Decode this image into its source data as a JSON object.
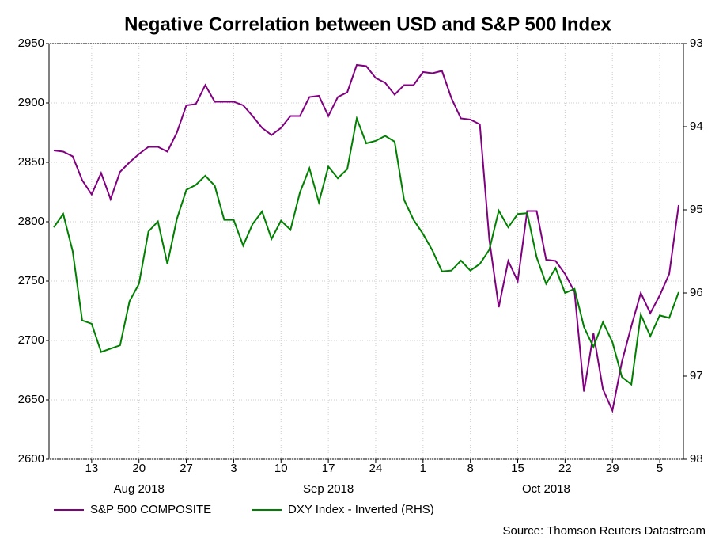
{
  "chart_data": {
    "type": "line",
    "title": "Negative Correlation between USD and S&P 500 Index",
    "source": "Source: Thomson Reuters Datastream",
    "x": [
      "2018-08-07",
      "2018-08-08",
      "2018-08-09",
      "2018-08-10",
      "2018-08-13",
      "2018-08-14",
      "2018-08-15",
      "2018-08-16",
      "2018-08-17",
      "2018-08-20",
      "2018-08-21",
      "2018-08-22",
      "2018-08-23",
      "2018-08-24",
      "2018-08-27",
      "2018-08-28",
      "2018-08-29",
      "2018-08-30",
      "2018-08-31",
      "2018-09-03",
      "2018-09-04",
      "2018-09-05",
      "2018-09-06",
      "2018-09-07",
      "2018-09-10",
      "2018-09-11",
      "2018-09-12",
      "2018-09-13",
      "2018-09-14",
      "2018-09-17",
      "2018-09-18",
      "2018-09-19",
      "2018-09-20",
      "2018-09-21",
      "2018-09-24",
      "2018-09-25",
      "2018-09-26",
      "2018-09-27",
      "2018-09-28",
      "2018-10-01",
      "2018-10-02",
      "2018-10-03",
      "2018-10-04",
      "2018-10-05",
      "2018-10-08",
      "2018-10-09",
      "2018-10-10",
      "2018-10-11",
      "2018-10-12",
      "2018-10-15",
      "2018-10-16",
      "2018-10-17",
      "2018-10-18",
      "2018-10-19",
      "2018-10-22",
      "2018-10-23",
      "2018-10-24",
      "2018-10-25",
      "2018-10-26",
      "2018-10-29",
      "2018-10-30",
      "2018-10-31",
      "2018-11-01",
      "2018-11-02",
      "2018-11-05",
      "2018-11-06",
      "2018-11-07"
    ],
    "xticks": [
      {
        "value": "2018-08-13",
        "label": "13"
      },
      {
        "value": "2018-08-20",
        "label": "20"
      },
      {
        "value": "2018-08-27",
        "label": "27"
      },
      {
        "value": "2018-09-03",
        "label": "3"
      },
      {
        "value": "2018-09-10",
        "label": "10"
      },
      {
        "value": "2018-09-17",
        "label": "17"
      },
      {
        "value": "2018-09-24",
        "label": "24"
      },
      {
        "value": "2018-10-01",
        "label": "1"
      },
      {
        "value": "2018-10-08",
        "label": "8"
      },
      {
        "value": "2018-10-15",
        "label": "15"
      },
      {
        "value": "2018-10-22",
        "label": "22"
      },
      {
        "value": "2018-10-29",
        "label": "29"
      },
      {
        "value": "2018-11-05",
        "label": "5"
      }
    ],
    "xmonths": [
      {
        "value": "2018-08-20",
        "label": "Aug 2018"
      },
      {
        "value": "2018-09-17",
        "label": "Sep 2018"
      },
      {
        "value": "2018-10-18",
        "label": "Oct 2018"
      }
    ],
    "series": [
      {
        "name": "S&P 500 COMPOSITE",
        "color": "#800080",
        "values": [
          2860,
          2859,
          2855,
          2835,
          2823,
          2841,
          2819,
          2842,
          2850,
          2857,
          2863,
          2863,
          2859,
          2875,
          2898,
          2899,
          2915,
          2901,
          2901,
          2901,
          2898,
          2889,
          2879,
          2873,
          2879,
          2889,
          2889,
          2905,
          2906,
          2889,
          2905,
          2909,
          2932,
          2931,
          2921,
          2917,
          2907,
          2915,
          2915,
          2926,
          2925,
          2927,
          2904,
          2887,
          2886,
          2882,
          2785,
          2728,
          2767,
          2750,
          2809,
          2809,
          2768,
          2767,
          2756,
          2741,
          2657,
          2706,
          2659,
          2641,
          2682,
          2712,
          2740,
          2723,
          2738,
          2756,
          2814
        ]
      },
      {
        "name": "DXY Index - Inverted (RHS)",
        "color": "#008000",
        "axis": "y2",
        "values": [
          95.21,
          95.05,
          95.5,
          96.33,
          96.37,
          96.71,
          96.67,
          96.63,
          96.1,
          95.89,
          95.26,
          95.14,
          95.65,
          95.11,
          94.76,
          94.7,
          94.59,
          94.71,
          95.12,
          95.12,
          95.43,
          95.17,
          95.02,
          95.35,
          95.13,
          95.24,
          94.79,
          94.5,
          94.91,
          94.48,
          94.62,
          94.51,
          93.9,
          94.2,
          94.17,
          94.11,
          94.18,
          94.88,
          95.12,
          95.29,
          95.49,
          95.74,
          95.73,
          95.61,
          95.73,
          95.65,
          95.48,
          95.01,
          95.21,
          95.05,
          95.04,
          95.57,
          95.89,
          95.7,
          96.0,
          95.95,
          96.41,
          96.65,
          96.35,
          96.59,
          97.01,
          97.1,
          96.26,
          96.52,
          96.27,
          96.3,
          95.99
        ]
      }
    ],
    "ylim": [
      2600,
      2950
    ],
    "yticks": [
      2600,
      2650,
      2700,
      2750,
      2800,
      2850,
      2900,
      2950
    ],
    "y2lim": [
      98,
      93
    ],
    "y2ticks": [
      93,
      94,
      95,
      96,
      97,
      98
    ],
    "grid": true
  }
}
